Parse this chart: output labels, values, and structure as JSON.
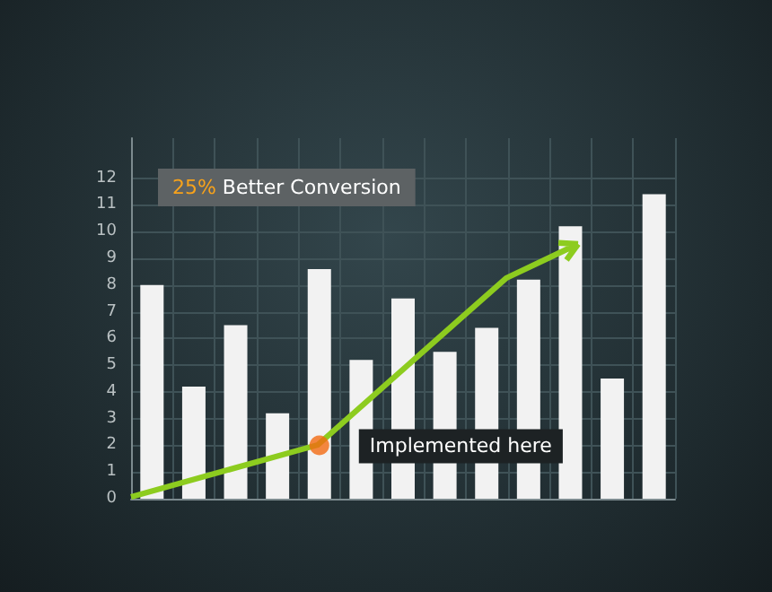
{
  "chart_data": {
    "type": "bar",
    "categories": [
      null,
      null,
      null,
      null,
      null,
      null,
      null,
      null,
      null,
      null,
      null,
      null,
      null
    ],
    "series": [
      {
        "color": "#f2f2f2",
        "values": [
          8.0,
          4.2,
          6.5,
          3.2,
          8.6,
          5.2,
          7.5,
          5.5,
          6.4,
          8.2,
          10.2,
          4.5,
          11.4
        ]
      },
      {
        "type": "scatter",
        "color": "#f26a12",
        "marker": "circle",
        "values": [
          null,
          null,
          null,
          null,
          2.0,
          null,
          null,
          null,
          null,
          null,
          null,
          null,
          null
        ]
      }
    ],
    "ylim": [
      0,
      13.5
    ],
    "yticks": [
      0,
      1,
      2,
      3,
      4,
      5,
      6,
      7,
      8,
      9,
      10,
      11,
      12
    ],
    "grid": true,
    "annotations": [
      "25% Better Conversion",
      {
        "text": "Implemented here",
        "y": 2.0
      }
    ]
  }
}
